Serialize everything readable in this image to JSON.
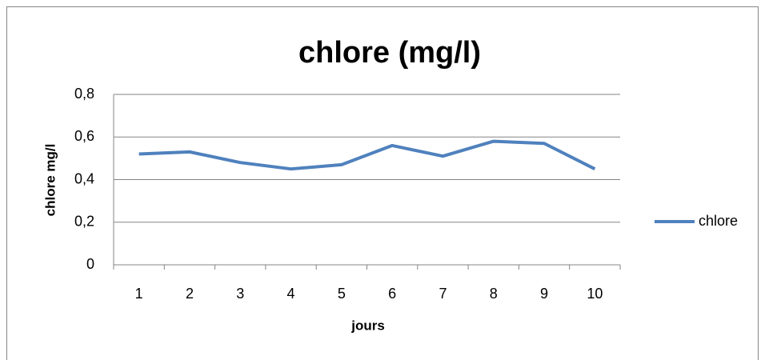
{
  "chart_data": {
    "type": "line",
    "title": "chlore (mg/l)",
    "x_label": "jours",
    "y_label": "chlore mg/l",
    "categories": [
      1,
      2,
      3,
      4,
      5,
      6,
      7,
      8,
      9,
      10
    ],
    "series": [
      {
        "name": "chlore",
        "color": "#4f81bd",
        "values": [
          0.52,
          0.53,
          0.48,
          0.45,
          0.47,
          0.56,
          0.51,
          0.58,
          0.57,
          0.45
        ]
      }
    ],
    "ylim": [
      0,
      0.8
    ],
    "yticks": [
      0,
      {
        "value": 0.2,
        "label": "0,2"
      },
      {
        "value": 0.4,
        "label": "0,4"
      },
      {
        "value": 0.6,
        "label": "0,6"
      },
      {
        "value": 0.8,
        "label": "0,8"
      }
    ],
    "grid": true,
    "legend": "right"
  }
}
